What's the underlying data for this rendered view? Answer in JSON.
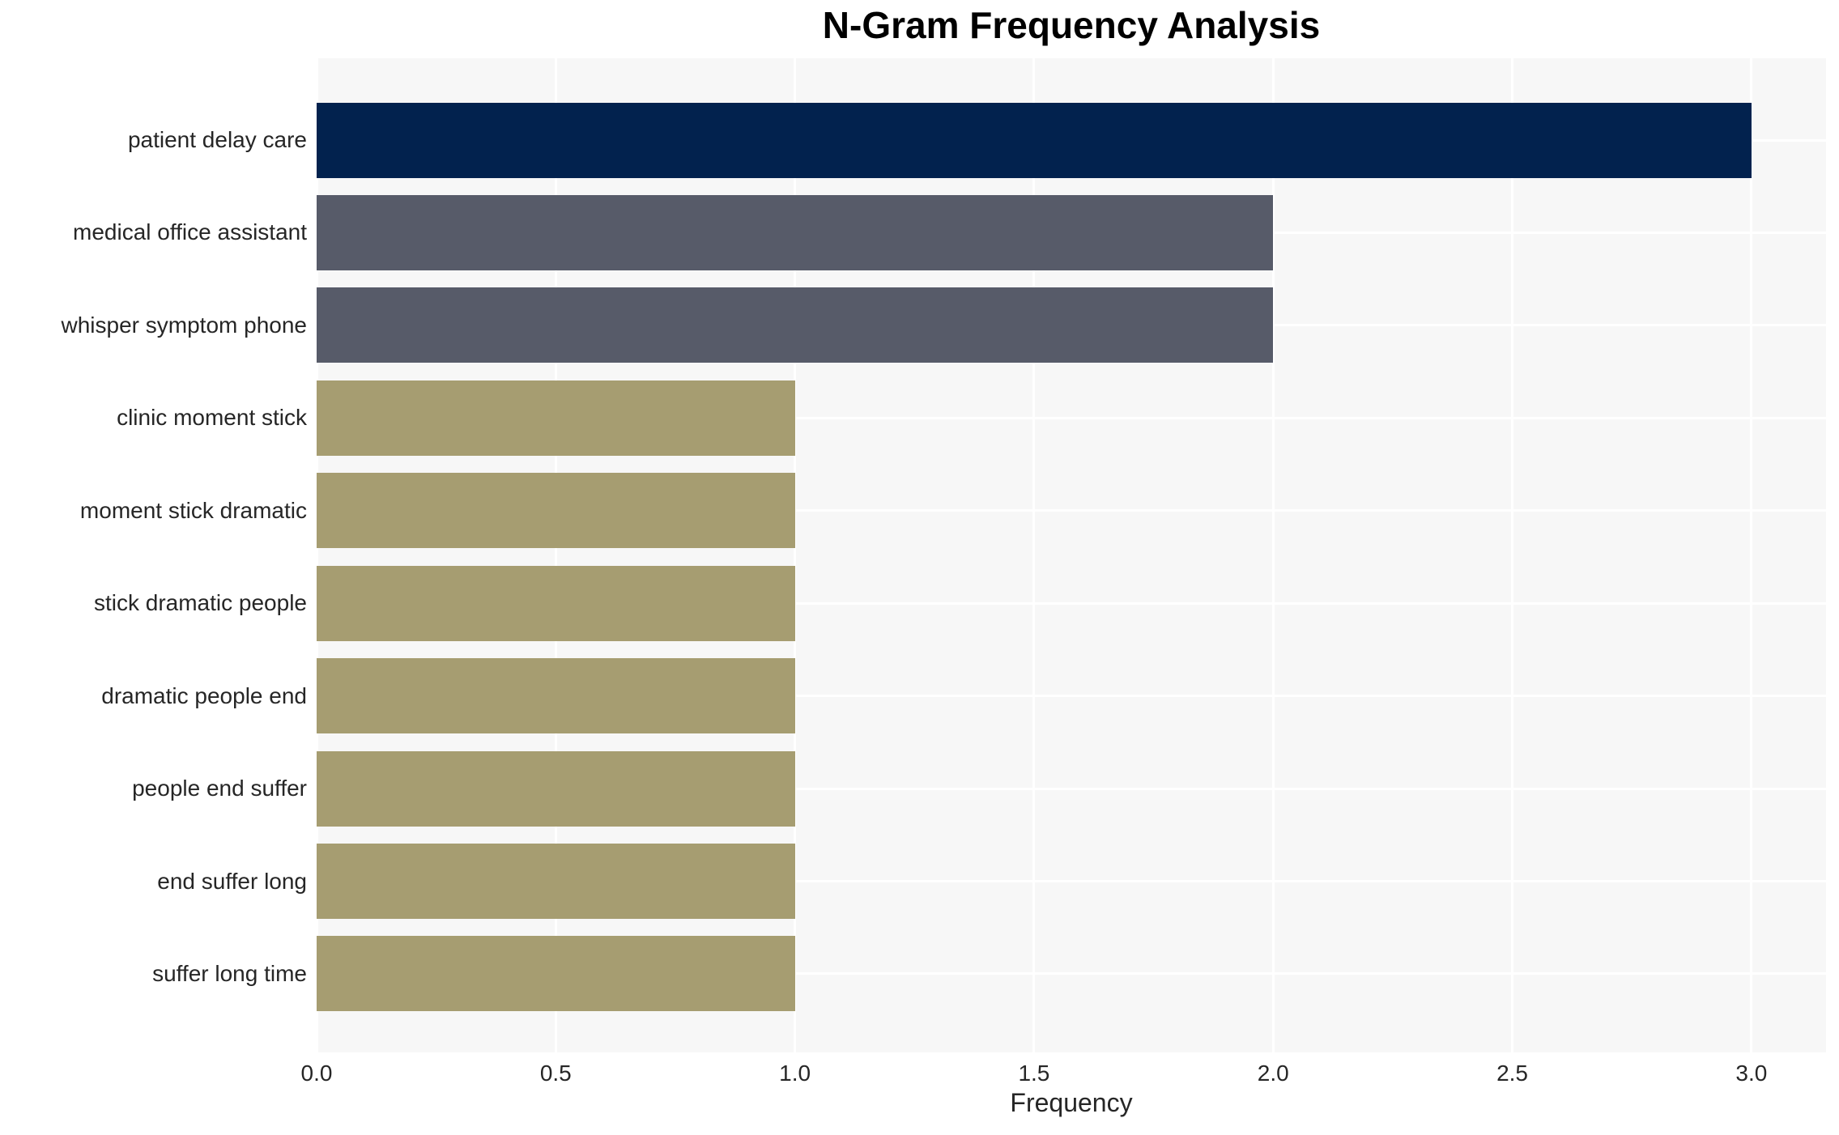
{
  "chart_data": {
    "type": "bar",
    "orientation": "horizontal",
    "title": "N-Gram Frequency Analysis",
    "xlabel": "Frequency",
    "ylabel": "",
    "categories": [
      "patient delay care",
      "medical office assistant",
      "whisper symptom phone",
      "clinic moment stick",
      "moment stick dramatic",
      "stick dramatic people",
      "dramatic people end",
      "people end suffer",
      "end suffer long",
      "suffer long time"
    ],
    "values": [
      3,
      2,
      2,
      1,
      1,
      1,
      1,
      1,
      1,
      1
    ],
    "bar_colors": [
      "#02224e",
      "#575b69",
      "#575b69",
      "#a69d71",
      "#a69d71",
      "#a69d71",
      "#a69d71",
      "#a69d71",
      "#a69d71",
      "#a69d71"
    ],
    "x_ticks": [
      0.0,
      0.5,
      1.0,
      1.5,
      2.0,
      2.5,
      3.0
    ],
    "x_tick_labels": [
      "0.0",
      "0.5",
      "1.0",
      "1.5",
      "2.0",
      "2.5",
      "3.0"
    ],
    "xlim": [
      0,
      3.156
    ],
    "grid": true,
    "legend": false,
    "colors": {
      "plot_background": "#f7f7f7",
      "figure_background": "#ffffff",
      "gridline": "#ffffff",
      "tick_text": "#262626",
      "title_text": "#000000"
    }
  }
}
